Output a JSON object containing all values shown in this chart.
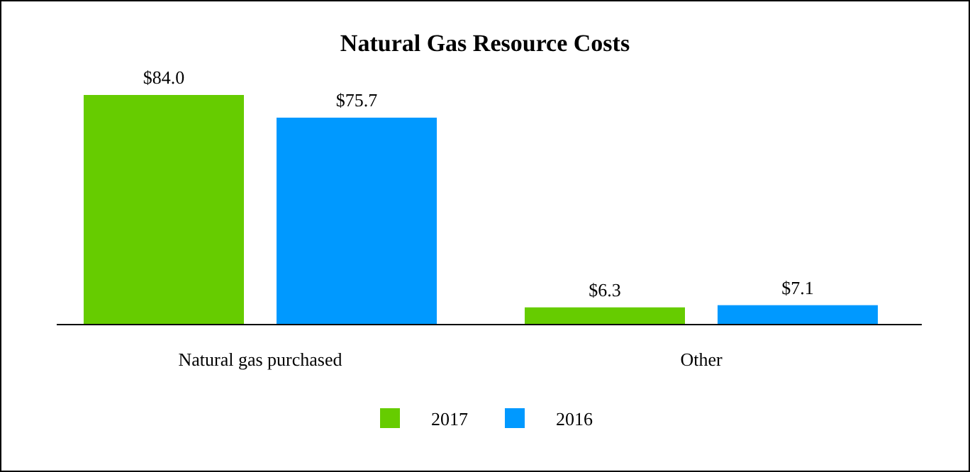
{
  "chart_data": {
    "type": "bar",
    "title": "Natural Gas Resource Costs",
    "categories": [
      "Natural gas purchased",
      "Other"
    ],
    "series": [
      {
        "name": "2017",
        "color": "#66cc00",
        "values": [
          84.0,
          6.3
        ],
        "value_labels": [
          "$84.0",
          "$6.3"
        ]
      },
      {
        "name": "2016",
        "color": "#0099ff",
        "values": [
          75.7,
          7.1
        ],
        "value_labels": [
          "$75.7",
          "$7.1"
        ]
      }
    ],
    "legend": "bottom"
  }
}
